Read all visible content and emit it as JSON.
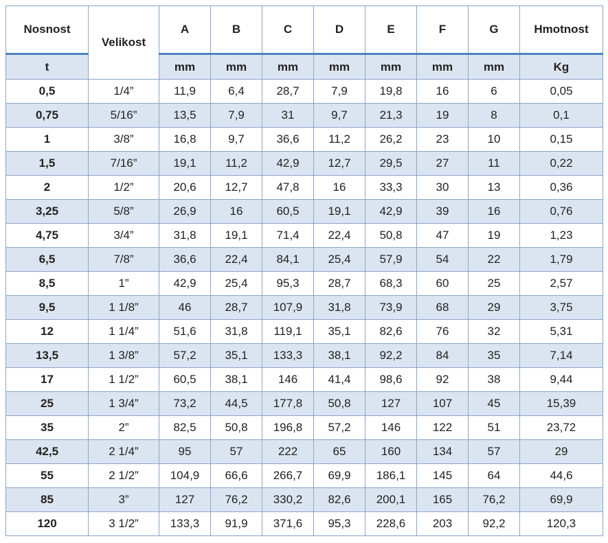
{
  "header": {
    "columns": [
      {
        "label": "Nosnost",
        "unit": "t"
      },
      {
        "label": "Velikost"
      },
      {
        "label": "A",
        "unit": "mm"
      },
      {
        "label": "B",
        "unit": "mm"
      },
      {
        "label": "C",
        "unit": "mm"
      },
      {
        "label": "D",
        "unit": "mm"
      },
      {
        "label": "E",
        "unit": "mm"
      },
      {
        "label": "F",
        "unit": "mm"
      },
      {
        "label": "G",
        "unit": "mm"
      },
      {
        "label": "Hmotnost",
        "unit": "Kg"
      }
    ]
  },
  "table": {
    "rows": [
      [
        "0,5",
        "1/4”",
        "11,9",
        "6,4",
        "28,7",
        "7,9",
        "19,8",
        "16",
        "6",
        "0,05"
      ],
      [
        "0,75",
        "5/16”",
        "13,5",
        "7,9",
        "31",
        "9,7",
        "21,3",
        "19",
        "8",
        "0,1"
      ],
      [
        "1",
        "3/8”",
        "16,8",
        "9,7",
        "36,6",
        "11,2",
        "26,2",
        "23",
        "10",
        "0,15"
      ],
      [
        "1,5",
        "7/16”",
        "19,1",
        "11,2",
        "42,9",
        "12,7",
        "29,5",
        "27",
        "11",
        "0,22"
      ],
      [
        "2",
        "1/2”",
        "20,6",
        "12,7",
        "47,8",
        "16",
        "33,3",
        "30",
        "13",
        "0,36"
      ],
      [
        "3,25",
        "5/8”",
        "26,9",
        "16",
        "60,5",
        "19,1",
        "42,9",
        "39",
        "16",
        "0,76"
      ],
      [
        "4,75",
        "3/4”",
        "31,8",
        "19,1",
        "71,4",
        "22,4",
        "50,8",
        "47",
        "19",
        "1,23"
      ],
      [
        "6,5",
        "7/8”",
        "36,6",
        "22,4",
        "84,1",
        "25,4",
        "57,9",
        "54",
        "22",
        "1,79"
      ],
      [
        "8,5",
        "1”",
        "42,9",
        "25,4",
        "95,3",
        "28,7",
        "68,3",
        "60",
        "25",
        "2,57"
      ],
      [
        "9,5",
        "1 1/8”",
        "46",
        "28,7",
        "107,9",
        "31,8",
        "73,9",
        "68",
        "29",
        "3,75"
      ],
      [
        "12",
        "1 1/4”",
        "51,6",
        "31,8",
        "119,1",
        "35,1",
        "82,6",
        "76",
        "32",
        "5,31"
      ],
      [
        "13,5",
        "1 3/8”",
        "57,2",
        "35,1",
        "133,3",
        "38,1",
        "92,2",
        "84",
        "35",
        "7,14"
      ],
      [
        "17",
        "1 1/2”",
        "60,5",
        "38,1",
        "146",
        "41,4",
        "98,6",
        "92",
        "38",
        "9,44"
      ],
      [
        "25",
        "1 3/4”",
        "73,2",
        "44,5",
        "177,8",
        "50,8",
        "127",
        "107",
        "45",
        "15,39"
      ],
      [
        "35",
        "2”",
        "82,5",
        "50,8",
        "196,8",
        "57,2",
        "146",
        "122",
        "51",
        "23,72"
      ],
      [
        "42,5",
        "2 1/4”",
        "95",
        "57",
        "222",
        "65",
        "160",
        "134",
        "57",
        "29"
      ],
      [
        "55",
        "2 1/2”",
        "104,9",
        "66,6",
        "266,7",
        "69,9",
        "186,1",
        "145",
        "64",
        "44,6"
      ],
      [
        "85",
        "3”",
        "127",
        "76,2",
        "330,2",
        "82,6",
        "200,1",
        "165",
        "76,2",
        "69,9"
      ],
      [
        "120",
        "3 1/2”",
        "133,3",
        "91,9",
        "371,6",
        "95,3",
        "228,6",
        "203",
        "92,2",
        "120,3"
      ]
    ]
  }
}
